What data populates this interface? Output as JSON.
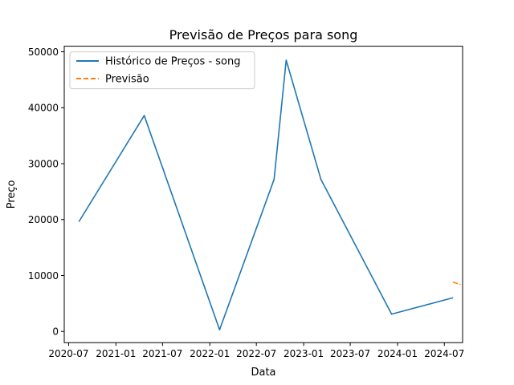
{
  "chart_data": {
    "type": "line",
    "title": "Previsão de Preços para song",
    "xlabel": "Data",
    "ylabel": "Preço",
    "x_ticks": [
      "2020-07",
      "2021-01",
      "2021-07",
      "2022-01",
      "2022-07",
      "2023-01",
      "2023-07",
      "2024-01",
      "2024-07"
    ],
    "y_ticks": [
      0,
      10000,
      20000,
      30000,
      40000,
      50000
    ],
    "y_tick_labels": [
      "0",
      "10000",
      "20000",
      "30000",
      "40000",
      "50000"
    ],
    "xlim": [
      "2020-06-14",
      "2024-09-10"
    ],
    "ylim": [
      -2000,
      51000
    ],
    "grid": false,
    "legend_position": "top-left",
    "series": [
      {
        "name": "Histórico de Preços - song",
        "style": "solid",
        "color": "#1f77b4",
        "x": [
          "2020-08-11",
          "2021-04-21",
          "2022-02-08",
          "2022-09-08",
          "2022-10-25",
          "2023-03-09",
          "2023-12-09",
          "2024-08-02"
        ],
        "y": [
          19700,
          38600,
          300,
          27200,
          48500,
          27200,
          3100,
          6000
        ]
      },
      {
        "name": "Previsão",
        "style": "dashed",
        "color": "#ff7f0e",
        "x": [
          "2024-08-05",
          "2024-08-31"
        ],
        "y": [
          8800,
          8400
        ]
      }
    ]
  }
}
